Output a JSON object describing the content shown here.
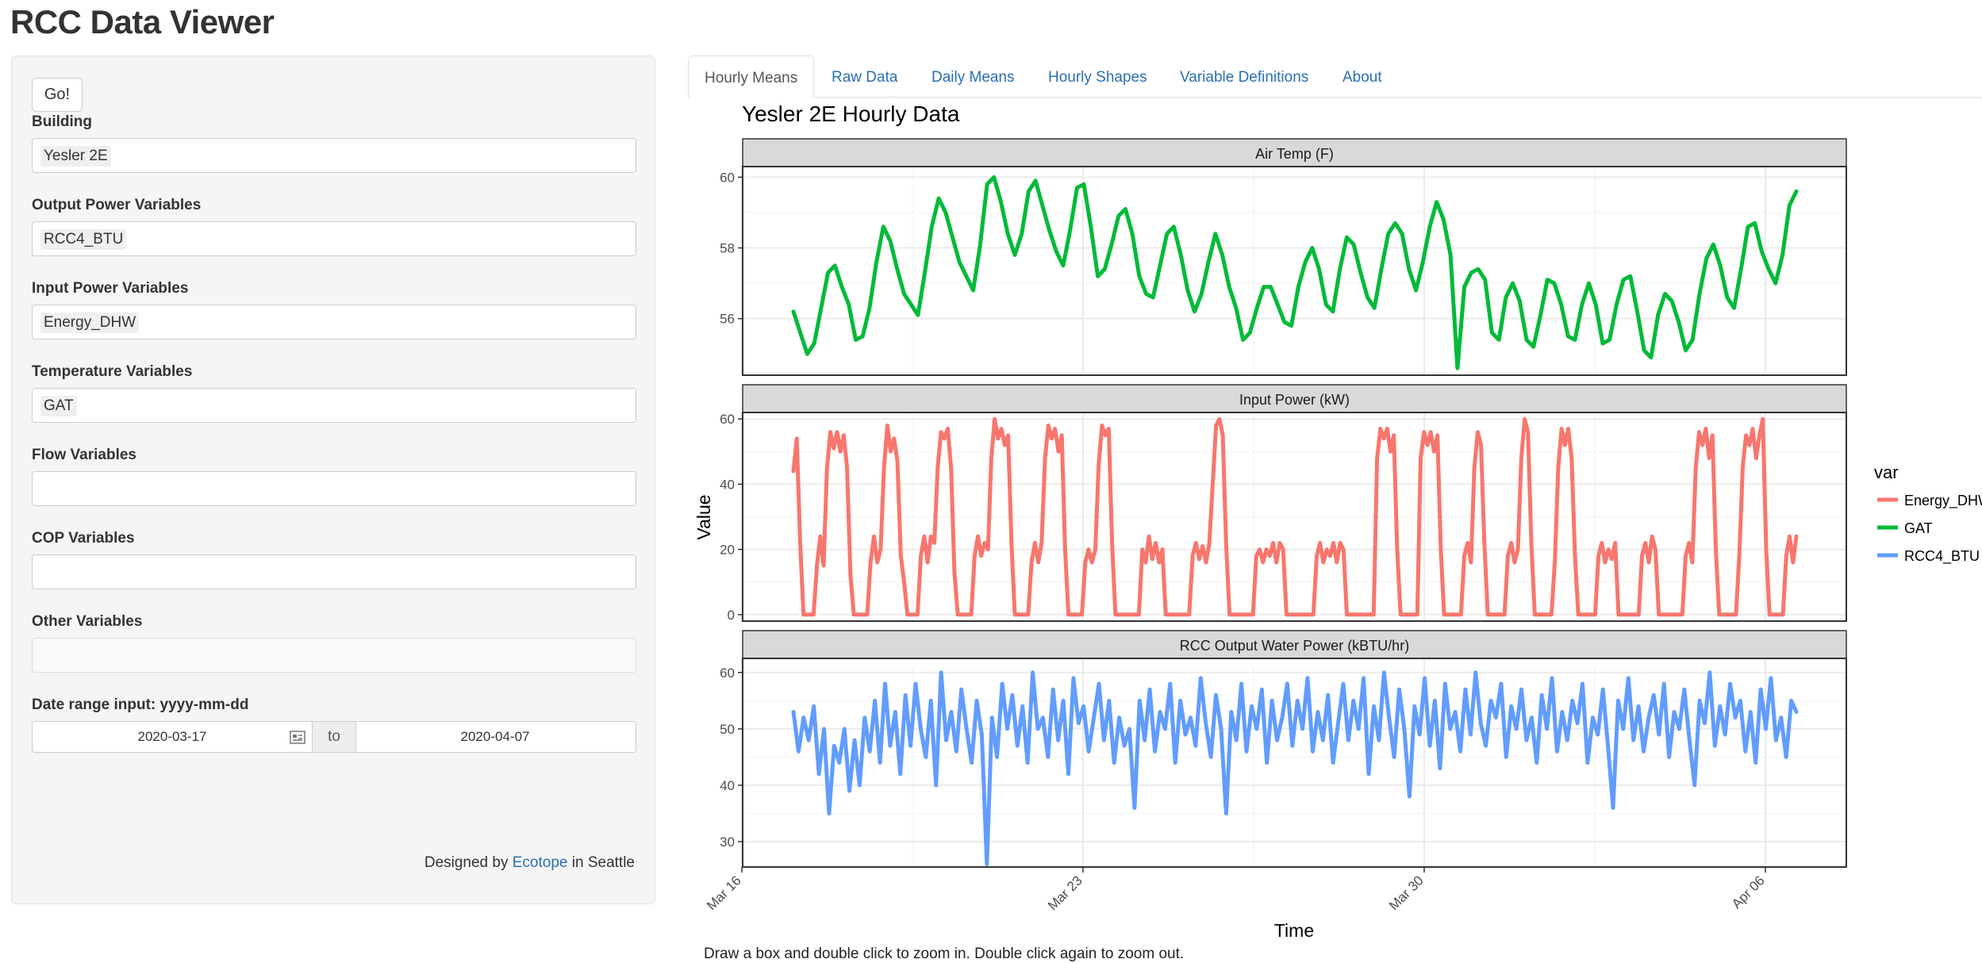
{
  "app": {
    "title": "RCC Data Viewer"
  },
  "sidebar": {
    "go_label": "Go!",
    "building": {
      "label": "Building",
      "value": "Yesler 2E"
    },
    "output_power": {
      "label": "Output Power Variables",
      "value": "RCC4_BTU"
    },
    "input_power": {
      "label": "Input Power Variables",
      "value": "Energy_DHW"
    },
    "temperature": {
      "label": "Temperature Variables",
      "value": "GAT"
    },
    "flow": {
      "label": "Flow Variables",
      "value": ""
    },
    "cop": {
      "label": "COP Variables",
      "value": ""
    },
    "other": {
      "label": "Other Variables",
      "value": ""
    },
    "date_range": {
      "label": "Date range input: yyyy-mm-dd",
      "start": "2020-03-17",
      "separator": "to",
      "end": "2020-04-07"
    },
    "footer": {
      "prefix": "Designed by",
      "link": "Ecotope",
      "suffix": "in Seattle"
    }
  },
  "tabs": [
    {
      "label": "Hourly Means",
      "active": true
    },
    {
      "label": "Raw Data"
    },
    {
      "label": "Daily Means"
    },
    {
      "label": "Hourly Shapes"
    },
    {
      "label": "Variable Definitions"
    },
    {
      "label": "About"
    }
  ],
  "plot": {
    "title": "Yesler 2E Hourly Data",
    "hint": "Draw a box and double click to zoom in. Double click again to zoom out."
  },
  "chart_data": {
    "type": "line",
    "xlabel": "Time",
    "ylabel": "Value",
    "x_ticks": [
      "Mar 16",
      "Mar 23",
      "Mar 30",
      "Apr 06"
    ],
    "x_start": "2020-03-17",
    "x_end": "2020-04-07",
    "grid": true,
    "legend": {
      "title": "var",
      "position": "right",
      "entries": [
        {
          "name": "Energy_DHW",
          "color": "#f8766d"
        },
        {
          "name": "GAT",
          "color": "#00ba38"
        },
        {
          "name": "RCC4_BTU",
          "color": "#619cff"
        }
      ]
    },
    "facets": [
      {
        "strip": "Air Temp (F)",
        "series": "GAT",
        "color": "#00ba38",
        "ylim": [
          54.4,
          60.3
        ],
        "y_ticks": [
          56,
          58,
          60
        ],
        "values": [
          56.2,
          55.6,
          55.0,
          55.3,
          56.3,
          57.3,
          57.5,
          56.9,
          56.4,
          55.4,
          55.5,
          56.3,
          57.6,
          58.6,
          58.2,
          57.4,
          56.7,
          56.4,
          56.1,
          57.3,
          58.6,
          59.4,
          59.0,
          58.3,
          57.6,
          57.2,
          56.8,
          58.1,
          59.8,
          60.0,
          59.3,
          58.4,
          57.8,
          58.4,
          59.6,
          59.9,
          59.2,
          58.5,
          57.9,
          57.5,
          58.5,
          59.7,
          59.8,
          58.6,
          57.2,
          57.4,
          58.1,
          58.9,
          59.1,
          58.4,
          57.2,
          56.7,
          56.6,
          57.5,
          58.4,
          58.6,
          57.8,
          56.8,
          56.2,
          56.7,
          57.6,
          58.4,
          57.8,
          56.9,
          56.3,
          55.4,
          55.6,
          56.3,
          56.9,
          56.9,
          56.4,
          55.9,
          55.8,
          56.9,
          57.6,
          58.0,
          57.4,
          56.4,
          56.2,
          57.4,
          58.3,
          58.1,
          57.3,
          56.6,
          56.3,
          57.4,
          58.4,
          58.7,
          58.4,
          57.4,
          56.8,
          57.6,
          58.6,
          59.3,
          58.8,
          57.8,
          54.6,
          56.9,
          57.3,
          57.4,
          57.1,
          55.6,
          55.4,
          56.6,
          57.0,
          56.5,
          55.4,
          55.2,
          56.1,
          57.1,
          57.0,
          56.4,
          55.5,
          55.4,
          56.4,
          57.0,
          56.4,
          55.3,
          55.4,
          56.4,
          57.1,
          57.2,
          56.2,
          55.1,
          54.9,
          56.1,
          56.7,
          56.5,
          55.9,
          55.1,
          55.4,
          56.7,
          57.7,
          58.1,
          57.5,
          56.6,
          56.3,
          57.4,
          58.6,
          58.7,
          57.9,
          57.4,
          57.0,
          57.8,
          59.2,
          59.6
        ]
      },
      {
        "strip": "Input Power (kW)",
        "series": "Energy_DHW",
        "color": "#f8766d",
        "ylim": [
          -2,
          62
        ],
        "y_ticks": [
          0,
          20,
          40,
          60
        ],
        "values": [
          44,
          54,
          22,
          0,
          0,
          0,
          0,
          15,
          24,
          15,
          45,
          56,
          51,
          56,
          50,
          55,
          45,
          12,
          0,
          0,
          0,
          0,
          0,
          16,
          24,
          16,
          20,
          45,
          58,
          50,
          54,
          47,
          18,
          10,
          0,
          0,
          0,
          0,
          18,
          24,
          16,
          24,
          22,
          45,
          56,
          54,
          57,
          45,
          13,
          0,
          0,
          0,
          0,
          0,
          18,
          24,
          18,
          22,
          20,
          48,
          60,
          54,
          57,
          52,
          55,
          22,
          0,
          0,
          0,
          0,
          0,
          16,
          22,
          16,
          22,
          48,
          58,
          54,
          57,
          50,
          55,
          20,
          0,
          0,
          0,
          0,
          0,
          16,
          20,
          16,
          20,
          46,
          58,
          55,
          57,
          22,
          0,
          0,
          0,
          0,
          0,
          0,
          0,
          0,
          20,
          16,
          24,
          17,
          22,
          16,
          20,
          0,
          0,
          0,
          0,
          0,
          0,
          0,
          0,
          18,
          22,
          17,
          21,
          16,
          22,
          40,
          58,
          60,
          55,
          22,
          0,
          0,
          0,
          0,
          0,
          0,
          0,
          0,
          18,
          20,
          16,
          20,
          18,
          22,
          16,
          22,
          20,
          0,
          0,
          0,
          0,
          0,
          0,
          0,
          0,
          0,
          18,
          22,
          16,
          20,
          18,
          22,
          16,
          22,
          20,
          0,
          0,
          0,
          0,
          0,
          0,
          0,
          0,
          0,
          48,
          57,
          54,
          57,
          50,
          55,
          20,
          0,
          0,
          0,
          0,
          0,
          0,
          48,
          56,
          52,
          56,
          50,
          55,
          20,
          0,
          0,
          0,
          0,
          0,
          0,
          18,
          22,
          16,
          45,
          56,
          52,
          22,
          0,
          0,
          0,
          0,
          0,
          0,
          18,
          22,
          16,
          20,
          48,
          60,
          56,
          22,
          0,
          0,
          0,
          0,
          0,
          0,
          16,
          45,
          57,
          52,
          57,
          48,
          18,
          0,
          0,
          0,
          0,
          0,
          0,
          18,
          22,
          16,
          20,
          17,
          22,
          0,
          0,
          0,
          0,
          0,
          0,
          0,
          18,
          22,
          16,
          24,
          20,
          0,
          0,
          0,
          0,
          0,
          0,
          0,
          0,
          18,
          22,
          16,
          45,
          56,
          52,
          57,
          48,
          55,
          20,
          0,
          0,
          0,
          0,
          0,
          0,
          18,
          45,
          55,
          52,
          57,
          48,
          55,
          60,
          20,
          0,
          0,
          0,
          0,
          0,
          18,
          24,
          16,
          24
        ]
      },
      {
        "strip": "RCC Output Water Power (kBTU/hr)",
        "series": "RCC4_BTU",
        "color": "#619cff",
        "ylim": [
          25.5,
          62.5
        ],
        "y_ticks": [
          30,
          40,
          50,
          60
        ],
        "values": [
          53,
          46,
          52,
          48,
          54,
          42,
          50,
          35,
          47,
          44,
          50,
          39,
          48,
          40,
          52,
          46,
          55,
          44,
          58,
          47,
          53,
          42,
          56,
          47,
          58,
          50,
          45,
          55,
          40,
          60,
          48,
          53,
          46,
          57,
          50,
          44,
          55,
          49,
          26,
          52,
          45,
          58,
          50,
          56,
          47,
          54,
          44,
          60,
          50,
          52,
          45,
          57,
          48,
          55,
          42,
          59,
          51,
          54,
          46,
          52,
          58,
          48,
          55,
          44,
          52,
          47,
          50,
          36,
          55,
          48,
          57,
          46,
          53,
          50,
          58,
          44,
          55,
          49,
          52,
          47,
          59,
          51,
          45,
          56,
          50,
          35,
          53,
          48,
          58,
          46,
          54,
          50,
          57,
          44,
          55,
          48,
          52,
          58,
          47,
          55,
          50,
          59,
          46,
          53,
          48,
          56,
          44,
          51,
          58,
          48,
          55,
          50,
          59,
          42,
          54,
          48,
          60,
          52,
          45,
          57,
          50,
          38,
          54,
          49,
          59,
          47,
          55,
          43,
          58,
          50,
          53,
          46,
          57,
          49,
          60,
          51,
          47,
          55,
          52,
          58,
          45,
          54,
          50,
          57,
          48,
          52,
          44,
          56,
          50,
          59,
          46,
          53,
          48,
          55,
          51,
          58,
          44,
          52,
          49,
          57,
          47,
          36,
          55,
          50,
          59,
          48,
          54,
          46,
          52,
          56,
          49,
          58,
          45,
          53,
          50,
          57,
          48,
          40,
          55,
          51,
          60,
          47,
          54,
          49,
          58,
          52,
          55,
          46,
          53,
          44,
          57,
          50,
          59,
          48,
          52,
          45,
          55,
          53
        ]
      }
    ]
  }
}
